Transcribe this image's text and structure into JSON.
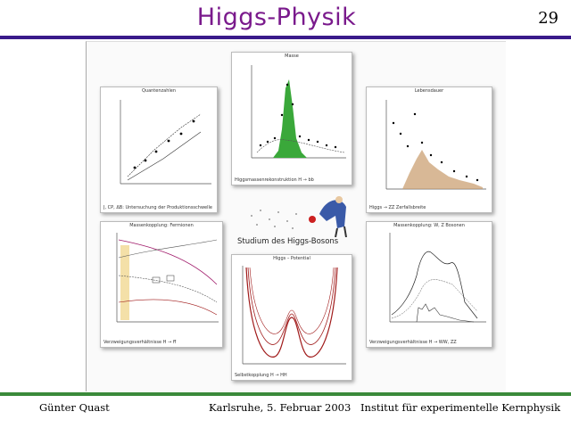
{
  "header": {
    "title": "Higgs-Physik",
    "page_number": "29"
  },
  "footer": {
    "author": "Günter Quast",
    "place_date": "Karlsruhe, 5. Februar 2003",
    "institute": "Institut für experimentelle Kernphysik"
  },
  "poster": {
    "center_label": "Studium des Higgs-Bosons",
    "panels": {
      "masse": {
        "title": "Masse",
        "caption": "Higgsmassenrekonstruktion  H → bb̄"
      },
      "quantenzahlen": {
        "title": "Quantenzahlen",
        "caption": "J, CP, ΔΒ: Untersuchung der Produktionsschwelle"
      },
      "lebensdauer": {
        "title": "Lebensdauer",
        "caption": "Higgs → ZZ Zerfallsbreite"
      },
      "massenkopplung": {
        "title": "Massenkopplung: Fermionen",
        "caption": "Verzweigungsverhältnisse  H → ff̄"
      },
      "potential": {
        "title": "Higgs – Potential",
        "caption": "Selbstkopplung  H → HH"
      },
      "bosonen": {
        "title": "Massenkopplung: W, Z Bosonen",
        "caption": "Verzweigungsverhältnisse  H → WW, ZZ"
      }
    }
  },
  "colors": {
    "title": "#7a1a8c",
    "top_rule": "#3a1a8a",
    "bottom_rule": "#3a8a3a",
    "signal_fill": "#3aa83a",
    "potential_curve": "#a01a1a"
  }
}
